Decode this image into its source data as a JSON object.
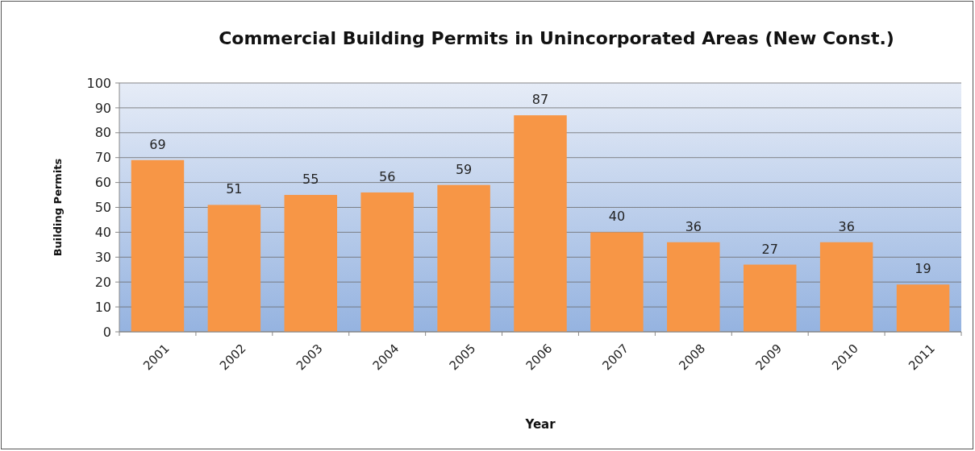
{
  "chart_data": {
    "type": "bar",
    "title": "Commercial Building Permits in Unincorporated  Areas (New Const.)",
    "xlabel": "Year",
    "ylabel": "Building Permits",
    "categories": [
      "2001",
      "2002",
      "2003",
      "2004",
      "2005",
      "2006",
      "2007",
      "2008",
      "2009",
      "2010",
      "2011"
    ],
    "values": [
      69,
      51,
      55,
      56,
      59,
      87,
      40,
      36,
      27,
      36,
      19
    ],
    "color": "#f79646",
    "ylim": [
      0,
      100
    ],
    "yticks": [
      0,
      10,
      20,
      30,
      40,
      50,
      60,
      70,
      80,
      90,
      100
    ],
    "grid": "y",
    "data_labels": true
  }
}
